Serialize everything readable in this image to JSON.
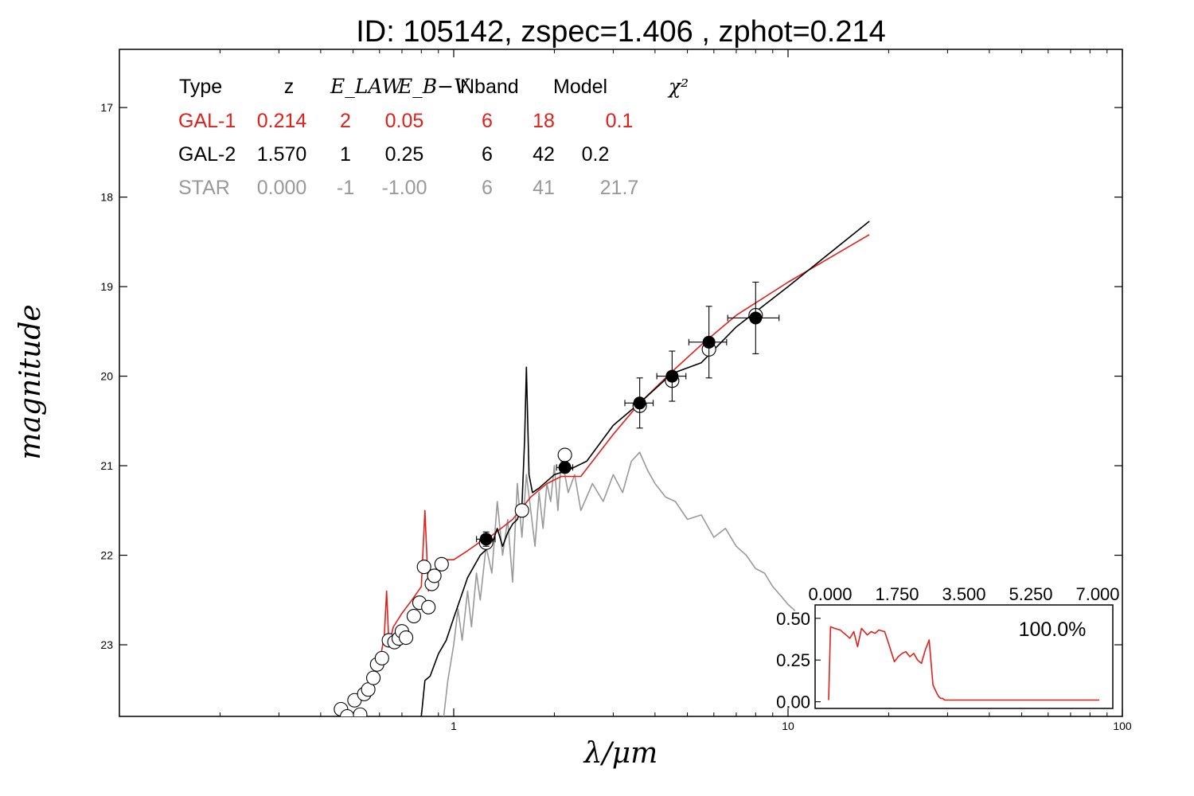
{
  "chart_data": {
    "type": "scatter",
    "title": "ID:  105142, zspec=1.406 , zphot=0.214",
    "xlabel": "λ/μm",
    "ylabel": "magnitude",
    "xscale": "log",
    "xlim": [
      0.1,
      100
    ],
    "ylim": [
      23.8,
      16.35
    ],
    "x_ticks": [
      "1",
      "10",
      "100"
    ],
    "y_ticks": [
      "17",
      "18",
      "19",
      "20",
      "21",
      "22",
      "23"
    ],
    "colors": {
      "gal1": "#e0201b",
      "gal2": "#000000",
      "star": "#999999"
    },
    "fit_table": {
      "headers": [
        "Type",
        "z",
        "E_LAW",
        "E_B−V",
        "Nband",
        "Model",
        "χ²"
      ],
      "rows": [
        {
          "type": "GAL-1",
          "z": "0.214",
          "elaw": "2",
          "ebv": "0.05",
          "nband": "6",
          "model": "18",
          "chi2": "0.1",
          "color": "#e0201b"
        },
        {
          "type": "GAL-2",
          "z": "1.570",
          "elaw": "1",
          "ebv": "0.25",
          "nband": "6",
          "model": "42",
          "chi2": "0.2",
          "color": "#000000"
        },
        {
          "type": "STAR",
          "z": "0.000",
          "elaw": "-1",
          "ebv": "-1.00",
          "nband": "6",
          "model": "41",
          "chi2": "21.7",
          "color": "#999999"
        }
      ]
    },
    "observed_points": [
      {
        "x": 1.25,
        "y": 21.82,
        "xerr": 0.08,
        "yerr": 0.08
      },
      {
        "x": 2.15,
        "y": 21.02,
        "xerr": 0.12,
        "yerr": 0.06
      },
      {
        "x": 3.6,
        "y": 20.3,
        "xerr": 0.35,
        "yerr": 0.28
      },
      {
        "x": 4.5,
        "y": 20.0,
        "xerr": 0.45,
        "yerr": 0.28
      },
      {
        "x": 5.8,
        "y": 19.62,
        "xerr": 0.75,
        "yerr": 0.4
      },
      {
        "x": 8.0,
        "y": 19.35,
        "xerr": 1.4,
        "yerr": 0.4
      }
    ],
    "model_points": [
      {
        "x": 0.46,
        "y": 23.72
      },
      {
        "x": 0.48,
        "y": 23.8
      },
      {
        "x": 0.505,
        "y": 23.62
      },
      {
        "x": 0.525,
        "y": 23.78
      },
      {
        "x": 0.54,
        "y": 23.55
      },
      {
        "x": 0.555,
        "y": 23.5
      },
      {
        "x": 0.575,
        "y": 23.37
      },
      {
        "x": 0.59,
        "y": 23.22
      },
      {
        "x": 0.61,
        "y": 23.15
      },
      {
        "x": 0.64,
        "y": 22.95
      },
      {
        "x": 0.665,
        "y": 22.97
      },
      {
        "x": 0.685,
        "y": 22.93
      },
      {
        "x": 0.7,
        "y": 22.85
      },
      {
        "x": 0.72,
        "y": 22.92
      },
      {
        "x": 0.76,
        "y": 22.68
      },
      {
        "x": 0.79,
        "y": 22.53
      },
      {
        "x": 0.815,
        "y": 22.13
      },
      {
        "x": 0.84,
        "y": 22.58
      },
      {
        "x": 0.86,
        "y": 22.32
      },
      {
        "x": 0.875,
        "y": 22.23
      },
      {
        "x": 0.92,
        "y": 22.1
      },
      {
        "x": 1.25,
        "y": 21.86
      },
      {
        "x": 1.6,
        "y": 21.5
      },
      {
        "x": 2.15,
        "y": 20.88
      },
      {
        "x": 3.6,
        "y": 20.33
      },
      {
        "x": 4.5,
        "y": 20.05
      },
      {
        "x": 5.8,
        "y": 19.7
      },
      {
        "x": 8.0,
        "y": 19.32
      }
    ],
    "series": [
      {
        "color": "#e0201b",
        "x": [
          0.55,
          0.6,
          0.62,
          0.63,
          0.64,
          0.66,
          0.7,
          0.75,
          0.8,
          0.82,
          0.84,
          0.86,
          0.9,
          0.95,
          1.0,
          1.1,
          1.2,
          1.3,
          1.5,
          1.7,
          1.9,
          2.1,
          2.4,
          3.0,
          3.6,
          4.5,
          5.5,
          7.0,
          10.0,
          17.5
        ],
        "y": [
          23.5,
          23.2,
          22.9,
          22.4,
          23.0,
          22.8,
          22.65,
          22.5,
          22.35,
          21.5,
          22.4,
          22.2,
          22.15,
          22.05,
          22.05,
          21.95,
          21.85,
          21.78,
          21.6,
          21.35,
          21.2,
          21.12,
          21.12,
          20.65,
          20.3,
          19.95,
          19.65,
          19.32,
          18.95,
          18.42
        ]
      },
      {
        "color": "#000000",
        "x": [
          0.8,
          0.82,
          0.85,
          0.9,
          0.95,
          1.0,
          1.1,
          1.2,
          1.3,
          1.35,
          1.4,
          1.45,
          1.5,
          1.55,
          1.6,
          1.63,
          1.65,
          1.68,
          1.72,
          1.8,
          2.0,
          2.2,
          2.5,
          3.0,
          3.6,
          4.5,
          5.5,
          7.0,
          10.0,
          17.5
        ],
        "y": [
          23.8,
          23.4,
          23.35,
          23.1,
          22.95,
          22.7,
          22.25,
          22.0,
          21.88,
          21.7,
          21.9,
          21.75,
          21.65,
          21.6,
          21.45,
          20.7,
          19.9,
          21.1,
          21.3,
          21.25,
          21.1,
          21.05,
          20.95,
          20.55,
          20.3,
          19.97,
          19.85,
          19.45,
          19.0,
          18.27
        ]
      },
      {
        "color": "#999999",
        "x": [
          0.93,
          0.96,
          1.0,
          1.03,
          1.06,
          1.1,
          1.13,
          1.17,
          1.2,
          1.25,
          1.3,
          1.35,
          1.4,
          1.45,
          1.5,
          1.55,
          1.6,
          1.65,
          1.7,
          1.75,
          1.8,
          1.85,
          1.9,
          1.95,
          2.0,
          2.05,
          2.1,
          2.2,
          2.3,
          2.4,
          2.6,
          2.8,
          3.0,
          3.2,
          3.4,
          3.6,
          3.8,
          4.0,
          4.3,
          4.6,
          5.0,
          5.5,
          6.0,
          6.5,
          7.0,
          7.5,
          8.0,
          8.5,
          9.0,
          9.5,
          10.0,
          10.5
        ],
        "y": [
          23.85,
          23.4,
          23.0,
          22.6,
          22.95,
          22.4,
          22.8,
          22.2,
          22.5,
          21.9,
          22.2,
          21.4,
          22.0,
          21.6,
          22.3,
          21.2,
          21.8,
          21.1,
          21.5,
          21.9,
          21.3,
          21.7,
          21.2,
          21.4,
          21.0,
          21.5,
          20.9,
          21.3,
          21.1,
          21.5,
          21.2,
          21.4,
          21.1,
          21.3,
          20.95,
          20.85,
          21.05,
          21.2,
          21.35,
          21.4,
          21.6,
          21.55,
          21.8,
          21.7,
          21.9,
          22.0,
          22.15,
          22.2,
          22.35,
          22.45,
          22.55,
          22.62
        ]
      }
    ],
    "inset": {
      "label": "100.0%",
      "color": "#e0201b",
      "xlim": [
        0,
        7
      ],
      "ylim": [
        -0.04,
        0.58
      ],
      "x_ticks": [
        "0.000",
        "1.750",
        "3.500",
        "5.250",
        "7.000"
      ],
      "y_ticks": [
        "0.00",
        "0.25",
        "0.50"
      ],
      "x": [
        0.0,
        0.05,
        0.15,
        0.3,
        0.45,
        0.55,
        0.65,
        0.75,
        0.85,
        1.0,
        1.1,
        1.2,
        1.3,
        1.45,
        1.55,
        1.7,
        1.8,
        1.9,
        2.0,
        2.1,
        2.2,
        2.3,
        2.4,
        2.5,
        2.6,
        2.7,
        2.8,
        2.85,
        2.9,
        2.95,
        3.0,
        3.05,
        3.1,
        3.2,
        3.3,
        3.5,
        4.5,
        5.5,
        6.5,
        7.0
      ],
      "y": [
        0.01,
        0.45,
        0.44,
        0.43,
        0.4,
        0.38,
        0.42,
        0.33,
        0.44,
        0.4,
        0.42,
        0.41,
        0.43,
        0.42,
        0.35,
        0.24,
        0.27,
        0.29,
        0.3,
        0.27,
        0.29,
        0.25,
        0.23,
        0.31,
        0.37,
        0.1,
        0.05,
        0.03,
        0.02,
        0.02,
        0.01,
        0.01,
        0.01,
        0.01,
        0.01,
        0.01,
        0.01,
        0.01,
        0.01,
        0.01
      ]
    }
  }
}
